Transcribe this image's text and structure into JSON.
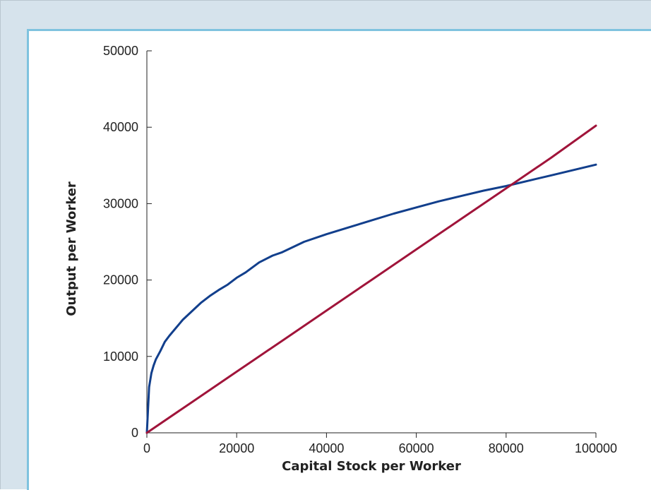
{
  "chart_data": {
    "type": "line",
    "title": "",
    "xlabel": "Capital Stock per Worker",
    "ylabel": "Output per Worker",
    "xlim": [
      0,
      100000
    ],
    "ylim": [
      0,
      50000
    ],
    "x_ticks": [
      0,
      20000,
      40000,
      60000,
      80000,
      100000
    ],
    "y_ticks": [
      0,
      10000,
      20000,
      30000,
      40000,
      50000
    ],
    "grid": false,
    "series": [
      {
        "color": "#123f8c",
        "x": [
          0,
          500,
          1000,
          1500,
          2000,
          3000,
          4000,
          5000,
          6000,
          8000,
          10000,
          12000,
          14000,
          16000,
          18000,
          20000,
          22000,
          25000,
          28000,
          30000,
          35000,
          40000,
          45000,
          50000,
          55000,
          60000,
          65000,
          70000,
          75000,
          80000,
          85000,
          90000,
          95000,
          100000
        ],
        "y": [
          0,
          6000,
          7800,
          8800,
          9600,
          10700,
          11900,
          12700,
          13400,
          14800,
          15900,
          17000,
          17900,
          18700,
          19400,
          20300,
          21000,
          22300,
          23200,
          23600,
          25000,
          26000,
          26900,
          27800,
          28700,
          29500,
          30300,
          31000,
          31700,
          32300,
          33000,
          33700,
          34400,
          35100
        ]
      },
      {
        "color": "#a0143a",
        "x": [
          0,
          10000,
          20000,
          30000,
          40000,
          50000,
          60000,
          70000,
          80000,
          90000,
          100000
        ],
        "y": [
          0,
          4000,
          8000,
          12000,
          16000,
          20000,
          24000,
          28000,
          32000,
          36000,
          40200
        ]
      }
    ]
  }
}
